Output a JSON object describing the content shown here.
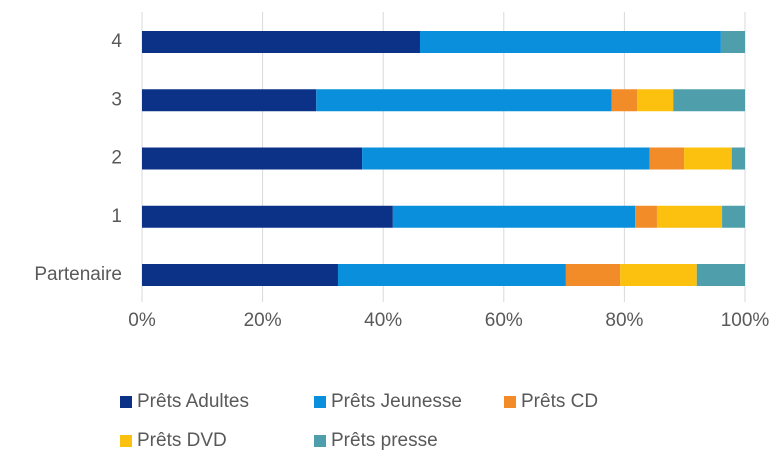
{
  "chart_data": {
    "type": "stacked-bar-horizontal",
    "categories": [
      "Partenaire",
      "1",
      "2",
      "3",
      "4"
    ],
    "series": [
      {
        "name": "Prêts Adultes",
        "color": "#0c3287",
        "values": [
          32.5,
          41.6,
          36.5,
          28.9,
          46.1
        ]
      },
      {
        "name": "Prêts Jeunesse",
        "color": "#0a8fdc",
        "values": [
          37.8,
          40.2,
          47.7,
          49,
          49.9
        ]
      },
      {
        "name": "Prêts CD",
        "color": "#f28c28",
        "values": [
          9,
          3.6,
          5.7,
          4.2,
          0
        ]
      },
      {
        "name": "Prêts DVD",
        "color": "#fcc10e",
        "values": [
          12.7,
          10.8,
          7.9,
          6,
          0
        ]
      },
      {
        "name": "Prêts presse",
        "color": "#4e9fab",
        "values": [
          8,
          3.8,
          2.2,
          11.9,
          4
        ]
      }
    ],
    "xlim": [
      0,
      100
    ],
    "xticks": [
      {
        "value": 0,
        "label": "0%"
      },
      {
        "value": 20,
        "label": "20%"
      },
      {
        "value": 40,
        "label": "40%"
      },
      {
        "value": 60,
        "label": "60%"
      },
      {
        "value": 80,
        "label": "80%"
      },
      {
        "value": 100,
        "label": "100%"
      }
    ],
    "grid": true
  }
}
